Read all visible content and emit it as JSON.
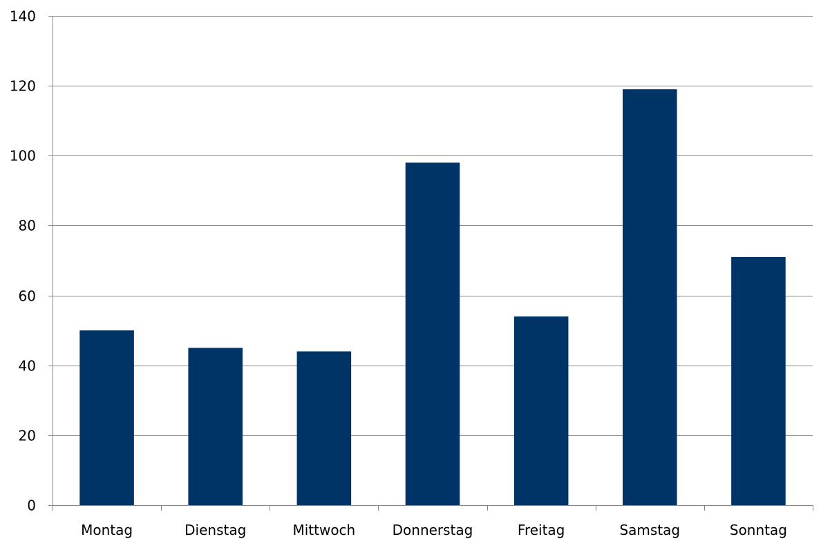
{
  "chart_data": {
    "type": "bar",
    "categories": [
      "Montag",
      "Dienstag",
      "Mittwoch",
      "Donnerstag",
      "Freitag",
      "Samstag",
      "Sonntag"
    ],
    "values": [
      50,
      45,
      44,
      98,
      54,
      119,
      71
    ],
    "ylim": [
      0,
      140
    ],
    "yticks": [
      0,
      20,
      40,
      60,
      80,
      100,
      120,
      140
    ],
    "ytick_labels": [
      "0",
      "20",
      "40",
      "60",
      "80",
      "100",
      "120",
      "140"
    ],
    "grid": true,
    "legend": "none",
    "colors": {
      "bar": "#003366",
      "grid": "#868686",
      "axis": "#868686"
    }
  }
}
